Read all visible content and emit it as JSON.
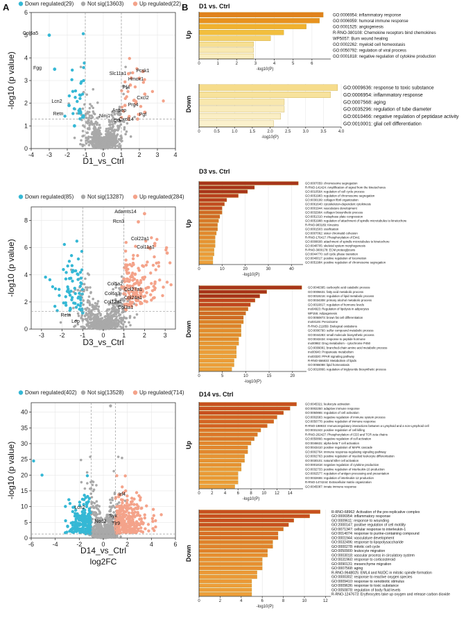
{
  "figure": {
    "letter_a": "A",
    "letter_b": "B",
    "legend_down": "Down regulated",
    "legend_notsig": "Not sig",
    "legend_up": "Up regulated",
    "colors": {
      "down": "#35b8d5",
      "notsig": "#a9a9a9",
      "up": "#f4a38a"
    }
  },
  "chart_data": [
    {
      "type": "scatter",
      "id": "volcano_d1",
      "xlabel": "D1_vs_Ctrl",
      "ylabel": "-log10 (p value)",
      "xlim": [
        -4,
        4
      ],
      "ylim": [
        0,
        6
      ],
      "xticks": [
        "-4",
        "-3",
        "-2",
        "-1",
        "0",
        "1",
        "2",
        "3",
        "4"
      ],
      "yticks": [
        "0",
        "1",
        "2",
        "3",
        "4",
        "5",
        "6"
      ],
      "legend": [
        "Down regulated(29)",
        "Not sig(13603)",
        "Up regulated(22)"
      ],
      "threshold_x": [
        -1,
        1
      ],
      "threshold_y": 1.3,
      "genes": [
        {
          "name": "Col6a5",
          "x": -3.0,
          "y": 5.0,
          "side": "down"
        },
        {
          "name": "Fgg",
          "x": -2.7,
          "y": 3.5,
          "side": "down"
        },
        {
          "name": "Lcn2",
          "x": -1.9,
          "y": 1.9,
          "side": "down"
        },
        {
          "name": "Retn",
          "x": -1.6,
          "y": 1.0,
          "side": "down"
        },
        {
          "name": "Pcsk1",
          "x": 2.2,
          "y": 3.4,
          "side": "up"
        },
        {
          "name": "Slc11a1",
          "x": 1.4,
          "y": 3.3,
          "side": "up"
        },
        {
          "name": "Hmox1",
          "x": 2.0,
          "y": 3.1,
          "side": "up"
        },
        {
          "name": "Pf4",
          "x": 1.5,
          "y": 2.8,
          "side": "up"
        },
        {
          "name": "Cxcl2",
          "x": 2.3,
          "y": 2.4,
          "side": "up"
        },
        {
          "name": "Prg4",
          "x": 1.8,
          "y": 2.0,
          "side": "up"
        },
        {
          "name": "Anpep",
          "x": 1.2,
          "y": 1.9,
          "side": "up"
        },
        {
          "name": "Ninj1",
          "x": 0.9,
          "y": 1.5,
          "side": "notsig"
        },
        {
          "name": "Pgf",
          "x": 2.3,
          "y": 1.6,
          "side": "up"
        },
        {
          "name": "Cth",
          "x": 1.4,
          "y": 1.3,
          "side": "up"
        },
        {
          "name": "Cxcl14",
          "x": 1.9,
          "y": 1.3,
          "side": "up"
        }
      ]
    },
    {
      "type": "scatter",
      "id": "volcano_d3",
      "xlabel": "D3_vs_Ctrl",
      "ylabel": "-log10 (p value)",
      "xlim": [
        -3.5,
        3.5
      ],
      "ylim": [
        0,
        9
      ],
      "xticks": [
        "-3",
        "-2",
        "-1",
        "0",
        "1",
        "2",
        "3"
      ],
      "yticks": [
        "0",
        "2",
        "4",
        "6",
        "8"
      ],
      "legend": [
        "Down regulated(85)",
        "Not sig(13287)",
        "Up regulated(284)"
      ],
      "threshold_x": [
        -1,
        1
      ],
      "threshold_y": 1.3,
      "genes": [
        {
          "name": "Adamts14",
          "x": 2.0,
          "y": 8.5,
          "side": "up"
        },
        {
          "name": "Rcn3",
          "x": 1.7,
          "y": 7.9,
          "side": "up"
        },
        {
          "name": "Col22a1",
          "x": 2.5,
          "y": 6.3,
          "side": "up"
        },
        {
          "name": "Col11a1",
          "x": 3.1,
          "y": 5.6,
          "side": "up"
        },
        {
          "name": "Col5a2",
          "x": 1.0,
          "y": 3.7,
          "side": "up"
        },
        {
          "name": "Col27a1",
          "x": 1.7,
          "y": 3.4,
          "side": "up"
        },
        {
          "name": "Col6a3",
          "x": 0.9,
          "y": 3.1,
          "side": "up"
        },
        {
          "name": "Col24a1",
          "x": 1.8,
          "y": 2.9,
          "side": "up"
        },
        {
          "name": "Col12a1",
          "x": 1.0,
          "y": 2.6,
          "side": "up"
        },
        {
          "name": "Col3a1",
          "x": 1.4,
          "y": 2.3,
          "side": "up"
        },
        {
          "name": "Retn",
          "x": -1.0,
          "y": 1.2,
          "side": "down"
        },
        {
          "name": "Lep",
          "x": -0.8,
          "y": 0.7,
          "side": "notsig"
        }
      ]
    },
    {
      "type": "scatter",
      "id": "volcano_d14",
      "xlabel": "D14_vs_Ctrl",
      "xlabel2": "log2FC",
      "ylabel": "-log10 (p value)",
      "xlim": [
        -6,
        6
      ],
      "ylim": [
        0,
        43
      ],
      "xticks": [
        "-6",
        "-4",
        "-2",
        "0",
        "2",
        "4",
        "6"
      ],
      "yticks": [
        "0",
        "5",
        "10",
        "15",
        "20",
        "25",
        "30",
        "35",
        "40"
      ],
      "legend": [
        "Down regulated(402)",
        "Not sig(13528)",
        "Up regulated(714)"
      ],
      "threshold_x": [
        -1,
        1
      ],
      "threshold_y": 1.3,
      "genes": [
        {
          "name": "Lcn2",
          "x": -2.0,
          "y": 7.0,
          "side": "down"
        },
        {
          "name": "Irf4",
          "x": 2.4,
          "y": 8.0,
          "side": "up"
        },
        {
          "name": "Syk",
          "x": 1.4,
          "y": 4.2,
          "side": "up"
        },
        {
          "name": "Nod2",
          "x": 0.1,
          "y": 2.8,
          "side": "notsig"
        },
        {
          "name": "Tlr9",
          "x": 1.2,
          "y": 2.5,
          "side": "up"
        }
      ]
    },
    {
      "type": "bar",
      "id": "enrich_d1_up",
      "orientation": "horizontal",
      "title": "D1 vs. Ctrl",
      "side_label": "Up",
      "xlabel": "-log10(P)",
      "xlim": [
        0,
        7
      ],
      "xticks": [
        "0",
        "1",
        "2",
        "3",
        "4",
        "5",
        "6"
      ],
      "colors": [
        "#e0821c",
        "#e8921f",
        "#f0b12e",
        "#f2be3d",
        "#f5d06a",
        "#f7df92",
        "#f9e9b3",
        "#faedbf",
        "#fbf0c8"
      ],
      "labels": [
        "GO:0006954: inflammatory response",
        "GO:0006959: humoral immune response",
        "GO:0001525: angiogenesis",
        "R-RNO-380108: Chemokine receptors bind chemokines",
        "WP5057: Burn wound healing",
        "GO:0002262: myeloid cell homeostasis",
        "GO:0050792: regulation of viral process",
        "GO:0001818: negative regulation of cytokine production"
      ],
      "values": [
        6.6,
        6.4,
        5.7,
        4.5,
        3.8,
        2.9,
        2.9,
        2.9
      ]
    },
    {
      "type": "bar",
      "id": "enrich_d1_down",
      "orientation": "horizontal",
      "side_label": "Down",
      "xlabel": "-log10(P)",
      "xlim": [
        0,
        4
      ],
      "xticks": [
        "0",
        "0.5",
        "1.0",
        "1.5",
        "2.0",
        "2.5",
        "3.0",
        "3.5",
        "4.0"
      ],
      "colors": [
        "#f6dc8b",
        "#f7e29c",
        "#f8e7ad",
        "#f9ebbb",
        "#faeec4",
        "#fbf1cd"
      ],
      "labels": [
        "GO:0009636: response to toxic substance",
        "GO:0006954: inflammatory response",
        "GO:0007568: aging",
        "GO:0035296: regulation of tube diameter",
        "GO:0010466: negative regulation of peptidase activity",
        "GO:0010001: glial cell differentiation"
      ],
      "values": [
        3.9,
        3.7,
        2.4,
        2.4,
        2.3,
        2.1
      ]
    },
    {
      "type": "bar",
      "id": "enrich_d3_up",
      "orientation": "horizontal",
      "title": "D3 vs. Ctrl",
      "side_label": "Up",
      "xlabel": "-log10(P)",
      "xlim": [
        0,
        45
      ],
      "xticks": [
        "0",
        "10",
        "20",
        "30",
        "40"
      ],
      "colors": [
        "#a8351a",
        "#b8401d",
        "#c24c20",
        "#d06a23",
        "#d87a28",
        "#e2892d",
        "#e69432",
        "#ea9c38",
        "#ed9f3a"
      ],
      "labels": [
        "GO:0007059: chromosome segregation",
        "R-RNO-141424: Amplification of signal from the kinetochores",
        "GO:0010564: regulation of cell cycle process",
        "GO:0051983: regulation of chromosome segregation",
        "GO:0030199: collagen fibril organization",
        "GO:0061640: cytoskeleton-dependent cytokinesis",
        "GO:0001944: vasculature development",
        "GO:0032964: collagen biosynthetic process",
        "GO:0051310: metaphase plate congression",
        "GO:0051988: regulation of attachment of spindle microtubules to kinetochore",
        "R-RNO-983189: Kinesins",
        "GO:0001503: ossification",
        "GO:0007062: sister chromatid cohesion",
        "R-RNO-176417: Phosphorylation of Emi1",
        "GO:0008608: attachment of spindle microtubules to kinetochore",
        "GO:0048705: skeletal system morphogenesis",
        "R-RNO-3000178: ECM proteoglycans",
        "GO:0044770: cell cycle phase transition",
        "GO:0040017: positive regulation of locomotion",
        "GO:0051984: positive regulation of chromosome segregation"
      ],
      "values": [
        43,
        24,
        21,
        17,
        12,
        11,
        10,
        10,
        9,
        8.5,
        8,
        8,
        7.5,
        7,
        7,
        7,
        6.5,
        6.5,
        6,
        6
      ]
    },
    {
      "type": "bar",
      "id": "enrich_d3_down",
      "orientation": "horizontal",
      "side_label": "Down",
      "xlabel": "-log10(P)",
      "xlim": [
        0,
        23
      ],
      "xticks": [
        "0",
        "5",
        "10",
        "15",
        "20"
      ],
      "colors": [
        "#a8351a",
        "#c0461e",
        "#d06a23",
        "#de8229",
        "#e38d2e",
        "#e89632",
        "#ec9d38",
        "#ed9f3a"
      ],
      "labels": [
        "GO:0046395: carboxylic acid catabolic process",
        "GO:0006631: fatty acid metabolic process",
        "GO:0019216: regulation of lipid metabolic process",
        "GO:0034308: primary alcohol metabolic process",
        "GO:0010817: regulation of hormone levels",
        "mo04923: Regulation of lipolysis in adipocytes",
        "WP155: Adipogenesis",
        "GO:0050873: brown fat cell differentiation",
        "mo04146: Peroxisome",
        "R-RNO-211859: Biological oxidations",
        "GO:0006790: sulfur compound metabolic process",
        "GO:0044283: small molecule biosynthetic process",
        "GO:0043434: response to peptide hormone",
        "mo00982: Drug metabolism - cytochrome P450",
        "GO:0009081: branched-chain amino acid metabolic process",
        "mo00640: Propanoate metabolism",
        "mo03320: PPAR signaling pathway",
        "R-RNO-556833: Metabolism of lipids",
        "GO:0055088: lipid homeostasis",
        "GO:0010866: regulation of triglyceride biosynthetic process"
      ],
      "values": [
        22,
        14.5,
        13,
        12,
        11,
        10.5,
        10,
        9.5,
        9.5,
        9,
        9,
        9,
        8.5,
        8.5,
        8,
        8,
        8,
        7.5,
        7.5,
        7
      ]
    },
    {
      "type": "bar",
      "id": "enrich_d14_up",
      "orientation": "horizontal",
      "title": "D14 vs. Ctrl",
      "side_label": "Up",
      "xlabel": "-log10(P)",
      "xlim": [
        0,
        16
      ],
      "xticks": [
        "0",
        "2",
        "4",
        "6",
        "8",
        "10",
        "12",
        "14"
      ],
      "colors": [
        "#c8501f",
        "#d46424",
        "#dc7628",
        "#e3862d",
        "#e79232",
        "#ea9a36",
        "#ec9e39"
      ],
      "labels": [
        "GO:0045321: leukocyte activation",
        "GO:0002250: adaptive immune response",
        "GO:0050865: regulation of cell activation",
        "GO:0002683: negative regulation of immune system process",
        "GO:0050778: positive regulation of immune response",
        "R-RNO-198933: Immunoregulatory interactions between a Lymphoid and a non-Lymphoid cell",
        "GO:0031343: positive regulation of cell killing",
        "R-RNO-202427: Phosphorylation of CD3 and TCR zeta chains",
        "GO:0050866: negative regulation of cell activation",
        "GO:0046631: alpha-beta T cell activation",
        "GO:0043410: positive regulation of MAPK cascade",
        "GO:0002764: immune response-regulating signaling pathway",
        "GO:0002763: positive regulation of myeloid leukocyte differentiation",
        "GO:0030101: natural killer cell activation",
        "GO:0001818: negative regulation of cytokine production",
        "GO:0032733: positive regulation of interleukin-10 production",
        "GO:0002577: regulation of antigen processing and presentation",
        "GO:0032655: regulation of interleukin-12 production",
        "R-RNO-1474244: Extracellular matrix organization",
        "GO:0045087: innate immune response"
      ],
      "values": [
        15,
        14,
        13,
        12,
        11.5,
        10.5,
        9.5,
        9,
        8.5,
        8,
        7.5,
        7.5,
        7,
        7,
        6.5,
        6.5,
        6,
        6,
        6,
        5.5
      ]
    },
    {
      "type": "bar",
      "id": "enrich_d14_down",
      "orientation": "horizontal",
      "side_label": "Down",
      "xlabel": "-log10(P)",
      "xlim": [
        0,
        12.5
      ],
      "xticks": [
        "0",
        "2",
        "4",
        "6",
        "8",
        "10",
        "12"
      ],
      "colors": [
        "#c8501f",
        "#d86e25",
        "#e1822b",
        "#e78f31",
        "#eb9836",
        "#ed9e39"
      ],
      "labels": [
        "R-RNO-68962: Activation of the pre-replicative complex",
        "GO:0006954: inflammatory response",
        "GO:0009611: response to wounding",
        "GO:2000147: positive regulation of cell motility",
        "GO:0071347: cellular response to interleukin-1",
        "GO:0014074: response to purine-containing compound",
        "GO:0001944: vasculature development",
        "GO:0032496: response to lipopolysaccharide",
        "GO:0000278: mitotic cell cycle",
        "GO:0050900: leukocyte migration",
        "GO:0003018: vascular process in circulatory system",
        "GO:0031960: response to corticosteroid",
        "GO:0090131: mesenchyme migration",
        "GO:0007568: aging",
        "R-RNO-9648025: EML4 and NUDC in mitotic spindle formation",
        "GO:0000302: response to reactive oxygen species",
        "GO:0009410: response to xenobiotic stimulus",
        "GO:0009636: response to toxic substance",
        "GO:0050878: regulation of body fluid levels",
        "R-RNO-1247673: Erythrocytes take up oxygen and release carbon dioxide"
      ],
      "values": [
        11.5,
        10.5,
        9,
        8.5,
        8,
        7.5,
        7.5,
        7,
        7,
        6.5,
        6.5,
        6,
        6,
        6,
        5.5,
        5.5,
        5,
        5,
        5,
        5
      ]
    }
  ]
}
